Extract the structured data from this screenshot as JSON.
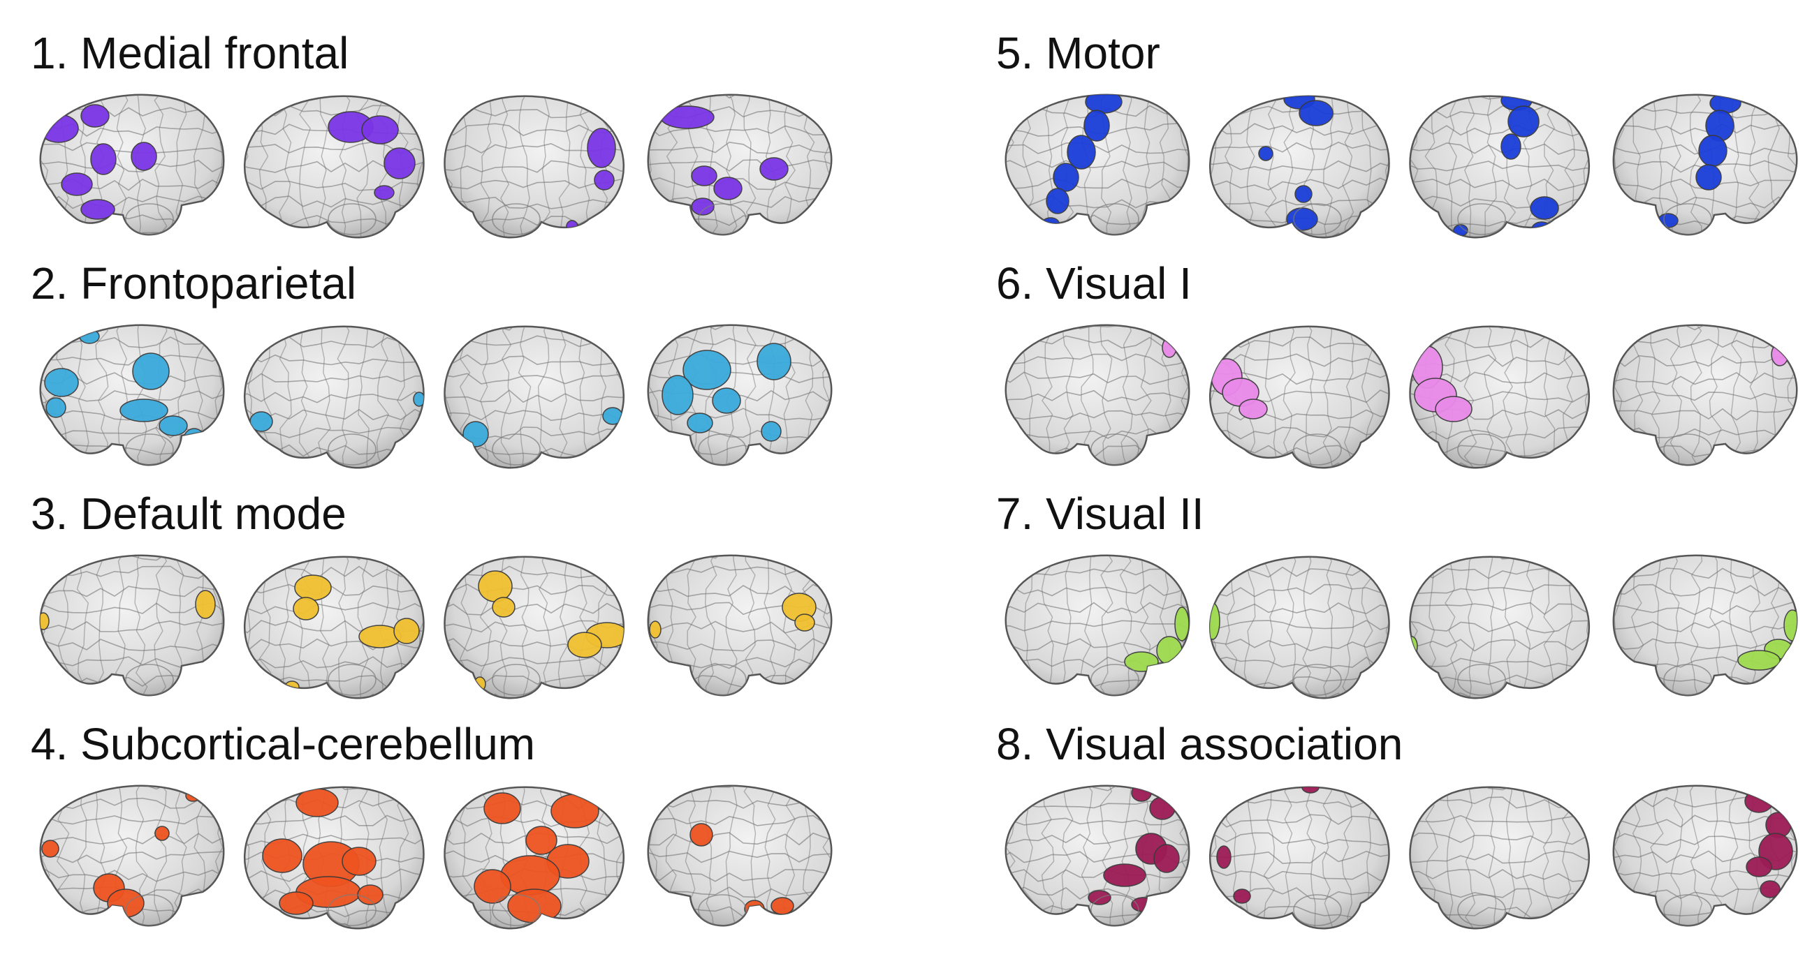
{
  "figure": {
    "panels": [
      {
        "id": "medial-frontal",
        "title": "1. Medial frontal",
        "color": "#7b35e6"
      },
      {
        "id": "frontoparietal",
        "title": "2. Frontoparietal",
        "color": "#3aaadc"
      },
      {
        "id": "default-mode",
        "title": "3. Default mode",
        "color": "#f0c030"
      },
      {
        "id": "subcortical-cerebellum",
        "title": "4. Subcortical-cerebellum",
        "color": "#ef5420"
      },
      {
        "id": "motor",
        "title": "5. Motor",
        "color": "#1a3ed9"
      },
      {
        "id": "visual-i",
        "title": "6. Visual I",
        "color": "#e98ae9"
      },
      {
        "id": "visual-ii",
        "title": "7. Visual II",
        "color": "#9fdc4e"
      },
      {
        "id": "visual-association",
        "title": "8. Visual association",
        "color": "#9c1c56"
      }
    ],
    "views": [
      "left-lateral",
      "left-medial",
      "right-medial",
      "right-lateral"
    ]
  }
}
